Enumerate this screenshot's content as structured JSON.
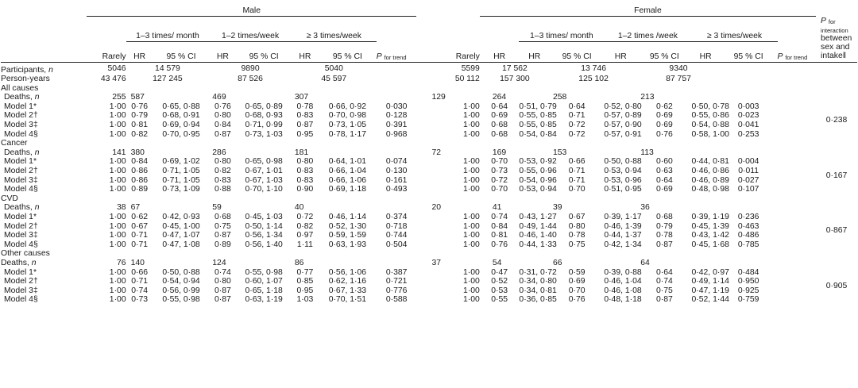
{
  "headers": {
    "male": "Male",
    "female": "Female",
    "freq_1_3_month": "1–3 times/ month",
    "freq_1_2_week": "1–2 times/week",
    "freq_1_2_week_f": "1–2 times /week",
    "freq_3_week": "≥ 3 times/week",
    "rarely": "Rarely",
    "hr": "HR",
    "ci": "95 % CI",
    "p_trend_main": "P",
    "p_trend_sub": "for trend",
    "p_inter_main": "P",
    "p_inter_sub": "for interaction",
    "p_inter_rest": "between sex and intake‖"
  },
  "summary": [
    {
      "label": "Participants, ",
      "label_it": "n",
      "m": [
        "5046",
        "14 579",
        "9890",
        "5040"
      ],
      "f": [
        "5599",
        "17 562",
        "13 746",
        "9340"
      ]
    },
    {
      "label": "Person-years",
      "label_it": "",
      "m": [
        "43 476",
        "127 245",
        "87 526",
        "45 597"
      ],
      "f": [
        "50 112",
        "157 300",
        "125 102",
        "87 757"
      ]
    }
  ],
  "sections": [
    {
      "title": "All causes",
      "deaths_label": "Deaths, ",
      "deaths_it": "n",
      "deaths_indent": true,
      "deaths_m": [
        "255",
        "587",
        "469",
        "307"
      ],
      "deaths_f": [
        "129",
        "264",
        "258",
        "213"
      ],
      "p_interaction": "0·238",
      "models": [
        {
          "name": "Model 1*",
          "m": [
            "1·00",
            "0·76",
            "0·65, 0·88",
            "0·76",
            "0·65, 0·89",
            "0·78",
            "0·66, 0·92",
            "0·030"
          ],
          "f": [
            "1·00",
            "0·64",
            "0·51, 0·79",
            "0·64",
            "0·52, 0·80",
            "0·62",
            "0·50, 0·78",
            "0·003"
          ]
        },
        {
          "name": "Model 2†",
          "m": [
            "1·00",
            "0·79",
            "0·68, 0·91",
            "0·80",
            "0·68, 0·93",
            "0·83",
            "0·70, 0·98",
            "0·128"
          ],
          "f": [
            "1·00",
            "0·69",
            "0·55, 0·85",
            "0·71",
            "0·57, 0·89",
            "0·69",
            "0·55, 0·86",
            "0·023"
          ]
        },
        {
          "name": "Model 3‡",
          "m": [
            "1·00",
            "0·81",
            "0·69, 0·94",
            "0·84",
            "0·71, 0·99",
            "0·87",
            "0·73, 1·05",
            "0·391"
          ],
          "f": [
            "1·00",
            "0·68",
            "0·55, 0·85",
            "0·72",
            "0·57, 0·90",
            "0·69",
            "0·54, 0·88",
            "0·041"
          ]
        },
        {
          "name": "Model 4§",
          "m": [
            "1·00",
            "0·82",
            "0·70, 0·95",
            "0·87",
            "0·73, 1·03",
            "0·95",
            "0·78, 1·17",
            "0·968"
          ],
          "f": [
            "1·00",
            "0·68",
            "0·54, 0·84",
            "0·72",
            "0·57, 0·91",
            "0·76",
            "0·58, 1·00",
            "0·253"
          ]
        }
      ]
    },
    {
      "title": "Cancer",
      "deaths_label": "Deaths, ",
      "deaths_it": "n",
      "deaths_indent": true,
      "deaths_m": [
        "141",
        "380",
        "286",
        "181"
      ],
      "deaths_f": [
        "72",
        "169",
        "153",
        "113"
      ],
      "p_interaction": "0·167",
      "models": [
        {
          "name": "Model 1*",
          "m": [
            "1·00",
            "0·84",
            "0·69, 1·02",
            "0·80",
            "0·65, 0·98",
            "0·80",
            "0·64, 1·01",
            "0·074"
          ],
          "f": [
            "1·00",
            "0·70",
            "0·53, 0·92",
            "0·66",
            "0·50, 0·88",
            "0·60",
            "0·44, 0·81",
            "0·004"
          ]
        },
        {
          "name": "Model 2†",
          "m": [
            "1·00",
            "0·86",
            "0·71, 1·05",
            "0·82",
            "0·67, 1·01",
            "0·83",
            "0·66, 1·04",
            "0·130"
          ],
          "f": [
            "1·00",
            "0·73",
            "0·55, 0·96",
            "0·71",
            "0·53, 0·94",
            "0·63",
            "0·46, 0·86",
            "0·011"
          ]
        },
        {
          "name": "Model 3‡",
          "m": [
            "1·00",
            "0·86",
            "0·71, 1·05",
            "0·83",
            "0·67, 1·03",
            "0·83",
            "0·66, 1·06",
            "0·161"
          ],
          "f": [
            "1·00",
            "0·72",
            "0·54, 0·96",
            "0·71",
            "0·53, 0·96",
            "0·64",
            "0·46, 0·89",
            "0·027"
          ]
        },
        {
          "name": "Model 4§",
          "m": [
            "1·00",
            "0·89",
            "0·73, 1·09",
            "0·88",
            "0·70, 1·10",
            "0·90",
            "0·69, 1·18",
            "0·493"
          ],
          "f": [
            "1·00",
            "0·70",
            "0·53, 0·94",
            "0·70",
            "0·51, 0·95",
            "0·69",
            "0·48, 0·98",
            "0·107"
          ]
        }
      ]
    },
    {
      "title": "CVD",
      "deaths_label": "Deaths, ",
      "deaths_it": "n",
      "deaths_indent": true,
      "deaths_m": [
        "38",
        "67",
        "59",
        "40"
      ],
      "deaths_f": [
        "20",
        "41",
        "39",
        "36"
      ],
      "p_interaction": "0·867",
      "models": [
        {
          "name": "Model 1*",
          "m": [
            "1·00",
            "0·62",
            "0·42, 0·93",
            "0·68",
            "0·45, 1·03",
            "0·72",
            "0·46, 1·14",
            "0·374"
          ],
          "f": [
            "1·00",
            "0·74",
            "0·43, 1·27",
            "0·67",
            "0·39, 1·17",
            "0·68",
            "0·39, 1·19",
            "0·236"
          ]
        },
        {
          "name": "Model 2†",
          "m": [
            "1·00",
            "0·67",
            "0·45, 1·00",
            "0·75",
            "0·50, 1·14",
            "0·82",
            "0·52, 1·30",
            "0·718"
          ],
          "f": [
            "1·00",
            "0·84",
            "0·49, 1·44",
            "0·80",
            "0·46, 1·39",
            "0·79",
            "0·45, 1·39",
            "0·463"
          ]
        },
        {
          "name": "Model 3‡",
          "m": [
            "1·00",
            "0·71",
            "0·47, 1·07",
            "0·87",
            "0·56, 1·34",
            "0·97",
            "0·59, 1·59",
            "0·744"
          ],
          "f": [
            "1·00",
            "0·81",
            "0·46, 1·40",
            "0·78",
            "0·44, 1·37",
            "0·78",
            "0·43, 1·42",
            "0·486"
          ]
        },
        {
          "name": "Model 4§",
          "m": [
            "1·00",
            "0·71",
            "0·47, 1·08",
            "0·89",
            "0·56, 1·40",
            "1·11",
            "0·63, 1·93",
            "0·504"
          ],
          "f": [
            "1·00",
            "0·76",
            "0·44, 1·33",
            "0·75",
            "0·42, 1·34",
            "0·87",
            "0·45, 1·68",
            "0·785"
          ]
        }
      ]
    },
    {
      "title": "Other causes",
      "deaths_label": "Deaths, ",
      "deaths_it": "n",
      "deaths_indent": false,
      "deaths_m": [
        "76",
        "140",
        "124",
        "86"
      ],
      "deaths_f": [
        "37",
        "54",
        "66",
        "64"
      ],
      "p_interaction": "0·905",
      "models": [
        {
          "name": "Model 1*",
          "m": [
            "1·00",
            "0·66",
            "0·50, 0·88",
            "0·74",
            "0·55, 0·98",
            "0·77",
            "0·56, 1·06",
            "0·387"
          ],
          "f": [
            "1·00",
            "0·47",
            "0·31, 0·72",
            "0·59",
            "0·39, 0·88",
            "0·64",
            "0·42, 0·97",
            "0·484"
          ]
        },
        {
          "name": "Model 2†",
          "m": [
            "1·00",
            "0·71",
            "0·54, 0·94",
            "0·80",
            "0·60, 1·07",
            "0·85",
            "0·62, 1·16",
            "0·721"
          ],
          "f": [
            "1·00",
            "0·52",
            "0·34, 0·80",
            "0·69",
            "0·46, 1·04",
            "0·74",
            "0·49, 1·14",
            "0·950"
          ]
        },
        {
          "name": "Model 3‡",
          "m": [
            "1·00",
            "0·74",
            "0·56, 0·99",
            "0·87",
            "0·65, 1·18",
            "0·95",
            "0·67, 1·33",
            "0·776"
          ],
          "f": [
            "1·00",
            "0·53",
            "0·34, 0·81",
            "0·70",
            "0·46, 1·08",
            "0·75",
            "0·47, 1·19",
            "0·925"
          ]
        },
        {
          "name": "Model 4§",
          "m": [
            "1·00",
            "0·73",
            "0·55, 0·98",
            "0·87",
            "0·63, 1·19",
            "1·03",
            "0·70, 1·51",
            "0·588"
          ],
          "f": [
            "1·00",
            "0·55",
            "0·36, 0·85",
            "0·76",
            "0·48, 1·18",
            "0·87",
            "0·52, 1·44",
            "0·759"
          ]
        }
      ]
    }
  ]
}
